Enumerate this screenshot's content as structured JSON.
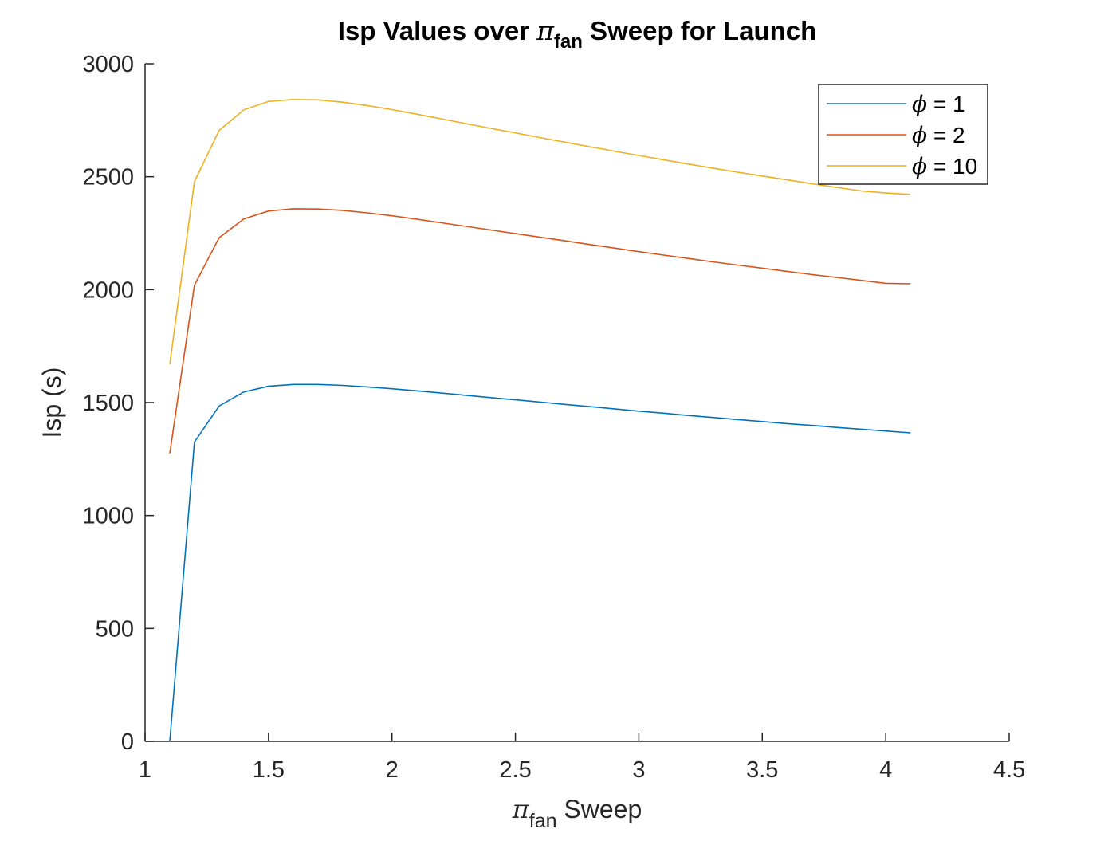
{
  "chart_data": {
    "type": "line",
    "title": {
      "pre": "Isp Values over ",
      "sym": "π",
      "sub": "fan",
      "post": " Sweep for Launch"
    },
    "xlabel": {
      "sym": "π",
      "sub": "fan",
      "post": " Sweep"
    },
    "ylabel": "Isp (s)",
    "xlim": [
      1,
      4.5
    ],
    "ylim": [
      0,
      3000
    ],
    "xticks": [
      1,
      1.5,
      2,
      2.5,
      3,
      3.5,
      4,
      4.5
    ],
    "xtick_labels": [
      "1",
      "1.5",
      "2",
      "2.5",
      "3",
      "3.5",
      "4",
      "4.5"
    ],
    "yticks": [
      0,
      500,
      1000,
      1500,
      2000,
      2500,
      3000
    ],
    "ytick_labels": [
      "0",
      "500",
      "1000",
      "1500",
      "2000",
      "2500",
      "3000"
    ],
    "grid": false,
    "legend_position": "top-right",
    "x": [
      1.1,
      1.2,
      1.3,
      1.4,
      1.5,
      1.6,
      1.7,
      1.8,
      1.9,
      2.0,
      2.1,
      2.2,
      2.3,
      2.4,
      2.5,
      2.6,
      2.7,
      2.8,
      2.9,
      3.0,
      3.1,
      3.2,
      3.3,
      3.4,
      3.5,
      3.6,
      3.7,
      3.8,
      3.9,
      4.0,
      4.1
    ],
    "series": [
      {
        "name": "= 1",
        "legend_sym": "ϕ",
        "color": "#0072BD",
        "values": [
          0,
          1325,
          1485,
          1547,
          1572,
          1580,
          1580,
          1576,
          1569,
          1561,
          1552,
          1542,
          1532,
          1522,
          1512,
          1502,
          1492,
          1482,
          1472,
          1462,
          1453,
          1443,
          1434,
          1425,
          1416,
          1407,
          1399,
          1390,
          1382,
          1374,
          1366
        ]
      },
      {
        "name": "= 2",
        "legend_sym": "ϕ",
        "color": "#D95319",
        "values": [
          1275,
          2020,
          2230,
          2313,
          2348,
          2358,
          2357,
          2351,
          2340,
          2327,
          2312,
          2296,
          2280,
          2264,
          2248,
          2232,
          2216,
          2200,
          2184,
          2168,
          2153,
          2138,
          2123,
          2109,
          2095,
          2081,
          2067,
          2054,
          2041,
          2028,
          2026
        ]
      },
      {
        "name": "= 10",
        "legend_sym": "ϕ",
        "color": "#EDB120",
        "values": [
          1670,
          2478,
          2705,
          2796,
          2833,
          2842,
          2840,
          2830,
          2815,
          2797,
          2777,
          2756,
          2735,
          2714,
          2694,
          2673,
          2653,
          2633,
          2613,
          2594,
          2575,
          2556,
          2538,
          2520,
          2503,
          2486,
          2469,
          2453,
          2437,
          2428,
          2422
        ]
      }
    ]
  }
}
